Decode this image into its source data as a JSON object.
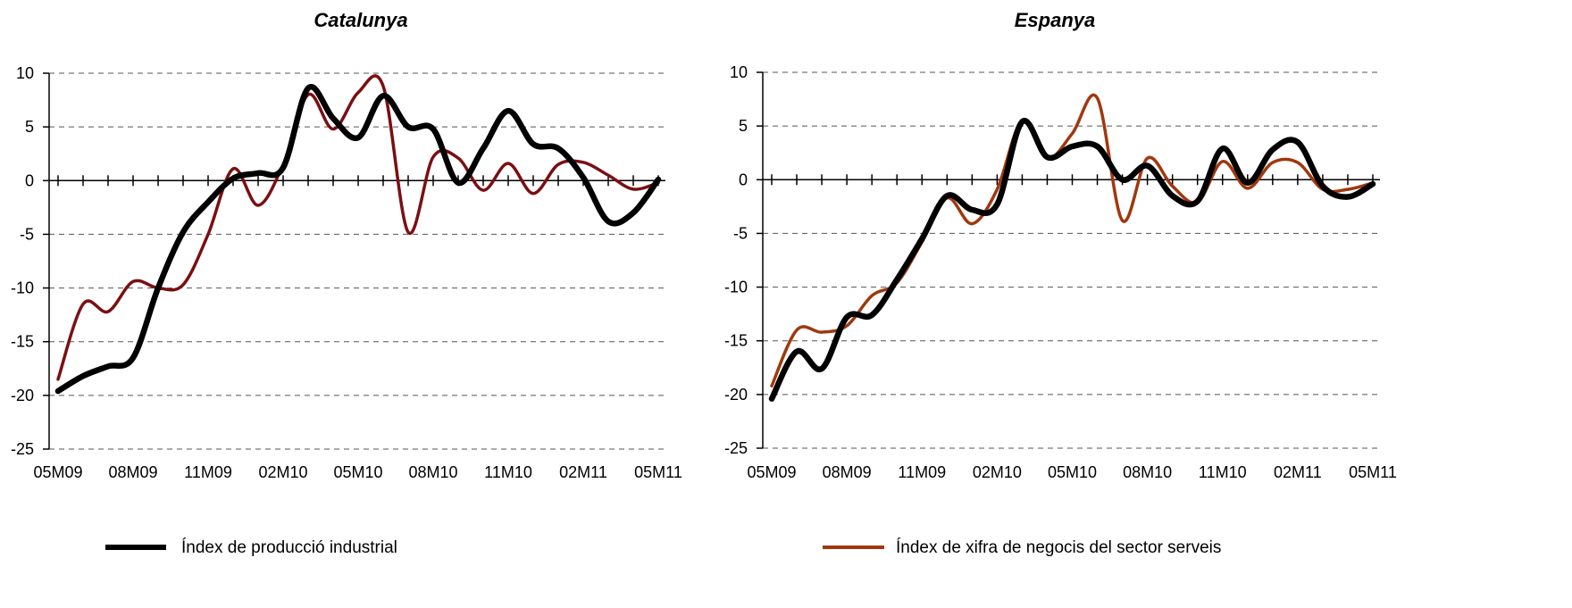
{
  "chart_data": [
    {
      "type": "line",
      "title": "Catalunya",
      "xlabel": "",
      "ylabel": "",
      "ylim": [
        -25,
        10
      ],
      "yticks": [
        10,
        5,
        0,
        -5,
        -10,
        -15,
        -20,
        -25
      ],
      "x_tick_labels": [
        "05M09",
        "08M09",
        "11M09",
        "02M10",
        "05M10",
        "08M10",
        "11M10",
        "02M11",
        "05M11"
      ],
      "grid": true,
      "x": [
        "05M09",
        "06M09",
        "07M09",
        "08M09",
        "09M09",
        "10M09",
        "11M09",
        "12M09",
        "01M10",
        "02M10",
        "03M10",
        "04M10",
        "05M10",
        "06M10",
        "07M10",
        "08M10",
        "09M10",
        "10M10",
        "11M10",
        "12M10",
        "01M11",
        "02M11",
        "03M11",
        "04M11",
        "05M11"
      ],
      "series": [
        {
          "name": "Índex de producció industrial",
          "color": "#000000",
          "values": [
            -19.6,
            -18.2,
            -17.3,
            -16.5,
            -10.0,
            -4.8,
            -2.0,
            0.2,
            0.7,
            1.2,
            8.6,
            5.8,
            4.0,
            7.9,
            5.0,
            4.8,
            -0.2,
            3.0,
            6.5,
            3.4,
            3.0,
            0.3,
            -3.8,
            -3.0,
            0.1
          ]
        },
        {
          "name": "Índex de xifra de negocis del sector serveis",
          "color": "#7a0f12",
          "values": [
            -18.5,
            -11.5,
            -12.2,
            -9.4,
            -10.0,
            -9.7,
            -5.0,
            1.1,
            -2.3,
            1.5,
            8.0,
            4.8,
            8.2,
            8.8,
            -4.8,
            2.2,
            2.1,
            -0.9,
            1.6,
            -1.2,
            1.5,
            1.7,
            0.5,
            -0.8,
            -0.2
          ]
        }
      ]
    },
    {
      "type": "line",
      "title": "Espanya",
      "xlabel": "",
      "ylabel": "",
      "ylim": [
        -25,
        10
      ],
      "yticks": [
        10,
        5,
        0,
        -5,
        -10,
        -15,
        -20,
        -25
      ],
      "x_tick_labels": [
        "05M09",
        "08M09",
        "11M09",
        "02M10",
        "05M10",
        "08M10",
        "11M10",
        "02M11",
        "05M11"
      ],
      "grid": true,
      "x": [
        "05M09",
        "06M09",
        "07M09",
        "08M09",
        "09M09",
        "10M09",
        "11M09",
        "12M09",
        "01M10",
        "02M10",
        "03M10",
        "04M10",
        "05M10",
        "06M10",
        "07M10",
        "08M10",
        "09M10",
        "10M10",
        "11M10",
        "12M10",
        "01M11",
        "02M11",
        "03M11",
        "04M11",
        "05M11"
      ],
      "series": [
        {
          "name": "Índex de producció industrial",
          "color": "#000000",
          "values": [
            -20.4,
            -16.0,
            -17.6,
            -12.8,
            -12.6,
            -9.3,
            -5.5,
            -1.5,
            -2.8,
            -2.3,
            5.4,
            2.1,
            3.1,
            3.1,
            0.0,
            1.3,
            -1.5,
            -2.0,
            2.9,
            -0.3,
            2.8,
            3.5,
            -0.6,
            -1.6,
            -0.4
          ]
        },
        {
          "name": "Índex de xifra de negocis del sector serveis",
          "color": "#a0380e",
          "values": [
            -19.2,
            -14.0,
            -14.2,
            -13.6,
            -10.8,
            -9.6,
            -5.8,
            -1.7,
            -4.1,
            -0.9,
            5.5,
            2.0,
            4.3,
            7.6,
            -3.8,
            2.0,
            -0.6,
            -2.1,
            1.7,
            -0.8,
            1.6,
            1.6,
            -0.9,
            -0.9,
            -0.3
          ]
        }
      ]
    }
  ],
  "legend": {
    "items": [
      {
        "label": "Índex de producció industrial",
        "color": "#000000"
      },
      {
        "label": "Índex de xifra de negocis del sector serveis",
        "color": "#a0380e"
      }
    ]
  }
}
